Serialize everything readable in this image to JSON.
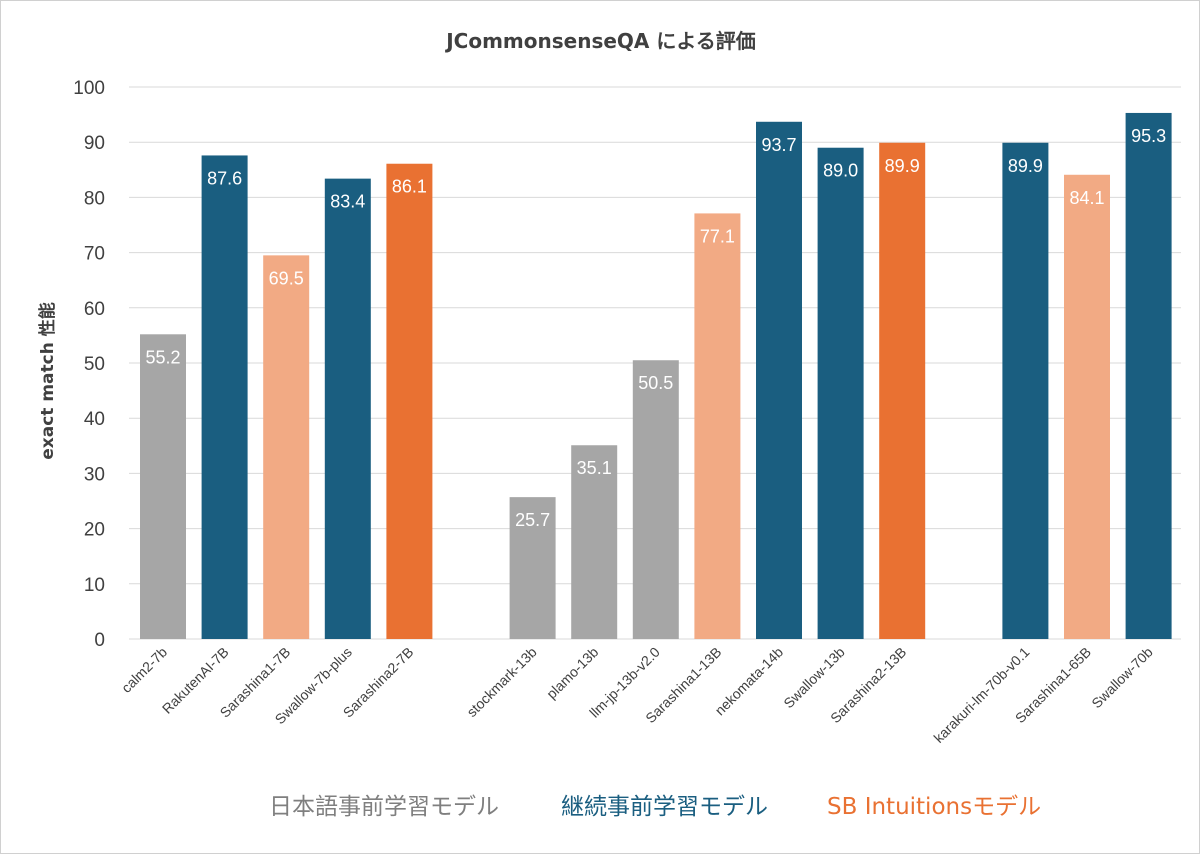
{
  "chart_data": {
    "type": "bar",
    "title": "JCommonsenseQA による評価",
    "xlabel": "",
    "ylabel": "exact match 性能",
    "ylim": [
      0,
      100
    ],
    "yticks": [
      0,
      10,
      20,
      30,
      40,
      50,
      60,
      70,
      80,
      90,
      100
    ],
    "grid": true,
    "legend_position": "bottom",
    "groups": [
      {
        "bars": [
          {
            "label": "calm2-7b",
            "value": 55.2,
            "category": "japanese"
          },
          {
            "label": "RakutenAI-7B",
            "value": 87.6,
            "category": "continued"
          },
          {
            "label": "Sarashina1-7B",
            "value": 69.5,
            "category": "sb1"
          },
          {
            "label": "Swallow-7b-plus",
            "value": 83.4,
            "category": "continued"
          },
          {
            "label": "Sarashina2-7B",
            "value": 86.1,
            "category": "sb2"
          }
        ]
      },
      {
        "bars": [
          {
            "label": "stockmark-13b",
            "value": 25.7,
            "category": "japanese"
          },
          {
            "label": "plamo-13b",
            "value": 35.1,
            "category": "japanese"
          },
          {
            "label": "llm-jp-13b-v2.0",
            "value": 50.5,
            "category": "japanese"
          },
          {
            "label": "Sarashina1-13B",
            "value": 77.1,
            "category": "sb1"
          },
          {
            "label": "nekomata-14b",
            "value": 93.7,
            "category": "continued"
          },
          {
            "label": "Swallow-13b",
            "value": 89.0,
            "category": "continued"
          },
          {
            "label": "Sarashina2-13B",
            "value": 89.9,
            "category": "sb2"
          }
        ]
      },
      {
        "bars": [
          {
            "label": "karakuri-lm-70b-v0.1",
            "value": 89.9,
            "category": "continued"
          },
          {
            "label": "Sarashina1-65B",
            "value": 84.1,
            "category": "sb1"
          },
          {
            "label": "Swallow-70b",
            "value": 95.3,
            "category": "continued"
          }
        ]
      }
    ],
    "colors": {
      "japanese": "#a6a6a6",
      "continued": "#1a5e80",
      "sb1": "#f2aa84",
      "sb2": "#e97132"
    },
    "legend": [
      {
        "text": "日本語事前学習モデル",
        "color": "#7f7f7f"
      },
      {
        "text": "継続事前学習モデル",
        "color": "#1a5e80"
      },
      {
        "text": "SB Intuitionsモデル",
        "color": "#e97132"
      }
    ]
  }
}
